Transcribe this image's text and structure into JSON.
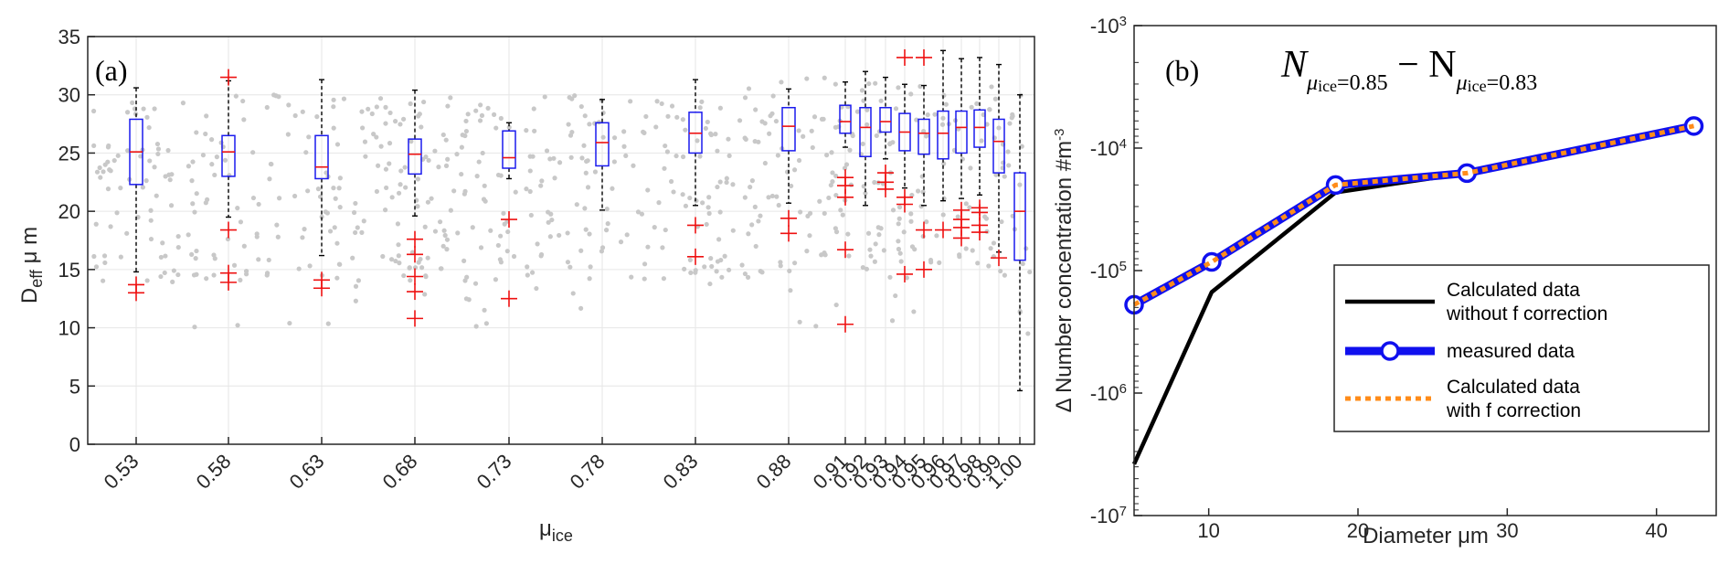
{
  "chart_data": [
    {
      "type": "box",
      "panel_label": "(a)",
      "xlabel_base": "μ",
      "xlabel_sub": "ice",
      "ylabel_base": "D",
      "ylabel_sub": "eff",
      "ylabel_unit": " μ m",
      "ylim": [
        0,
        35
      ],
      "yticks": [
        0,
        5,
        10,
        15,
        20,
        25,
        30,
        35
      ],
      "grid": true,
      "categories": [
        "0.53",
        "0.58",
        "0.63",
        "0.68",
        "0.73",
        "0.78",
        "0.83",
        "0.88",
        "0.91",
        "0.92",
        "0.93",
        "0.94",
        "0.95",
        "0.96",
        "0.97",
        "0.98",
        "0.99",
        "1.00"
      ],
      "boxes": [
        {
          "q1": 22.3,
          "median": 25.1,
          "q3": 27.9,
          "whisker_low": 14.8,
          "whisker_high": 30.6,
          "outliers": [
            13.7,
            13.0
          ]
        },
        {
          "q1": 23.0,
          "median": 25.1,
          "q3": 26.5,
          "whisker_low": 19.5,
          "whisker_high": 31.2,
          "outliers": [
            31.5,
            18.4,
            14.7,
            13.9
          ]
        },
        {
          "q1": 22.8,
          "median": 23.8,
          "q3": 26.5,
          "whisker_low": 16.2,
          "whisker_high": 31.3,
          "outliers": [
            14.1,
            13.4
          ]
        },
        {
          "q1": 23.2,
          "median": 24.9,
          "q3": 26.2,
          "whisker_low": 19.6,
          "whisker_high": 30.4,
          "outliers": [
            17.6,
            16.3,
            14.4,
            13.1,
            10.8
          ]
        },
        {
          "q1": 23.7,
          "median": 24.6,
          "q3": 26.9,
          "whisker_low": 22.8,
          "whisker_high": 27.6,
          "outliers": [
            19.3,
            12.5
          ]
        },
        {
          "q1": 23.9,
          "median": 25.9,
          "q3": 27.6,
          "whisker_low": 20.1,
          "whisker_high": 29.6,
          "outliers": []
        },
        {
          "q1": 25.0,
          "median": 26.7,
          "q3": 28.5,
          "whisker_low": 20.5,
          "whisker_high": 31.3,
          "outliers": [
            18.8,
            16.1
          ]
        },
        {
          "q1": 25.2,
          "median": 27.3,
          "q3": 28.9,
          "whisker_low": 20.7,
          "whisker_high": 30.5,
          "outliers": [
            19.4,
            18.1
          ]
        },
        {
          "q1": 26.7,
          "median": 27.7,
          "q3": 29.1,
          "whisker_low": 25.5,
          "whisker_high": 31.1,
          "outliers": [
            22.9,
            22.2,
            21.2,
            16.7,
            10.3
          ]
        },
        {
          "q1": 24.7,
          "median": 27.2,
          "q3": 28.9,
          "whisker_low": 20.5,
          "whisker_high": 32.0,
          "outliers": []
        },
        {
          "q1": 26.8,
          "median": 27.7,
          "q3": 28.9,
          "whisker_low": 24.5,
          "whisker_high": 31.5,
          "outliers": [
            23.3,
            22.5,
            21.9
          ]
        },
        {
          "q1": 25.2,
          "median": 26.8,
          "q3": 28.4,
          "whisker_low": 22.0,
          "whisker_high": 30.9,
          "outliers": [
            33.2,
            21.2,
            20.6,
            14.6
          ]
        },
        {
          "q1": 24.9,
          "median": 26.7,
          "q3": 27.9,
          "whisker_low": 20.5,
          "whisker_high": 30.8,
          "outliers": [
            33.2,
            18.4,
            15.0
          ]
        },
        {
          "q1": 24.5,
          "median": 26.7,
          "q3": 28.6,
          "whisker_low": 20.9,
          "whisker_high": 33.8,
          "outliers": [
            18.4
          ]
        },
        {
          "q1": 25.0,
          "median": 27.2,
          "q3": 28.6,
          "whisker_low": 21.1,
          "whisker_high": 33.1,
          "outliers": [
            20.1,
            19.3,
            18.6,
            17.7
          ]
        },
        {
          "q1": 25.5,
          "median": 27.2,
          "q3": 28.7,
          "whisker_low": 21.4,
          "whisker_high": 33.2,
          "outliers": [
            20.3,
            19.9,
            18.8,
            18.2
          ]
        },
        {
          "q1": 23.3,
          "median": 26.0,
          "q3": 27.9,
          "whisker_low": 16.5,
          "whisker_high": 32.6,
          "outliers": [
            16.0
          ]
        },
        {
          "q1": 15.8,
          "median": 20.0,
          "q3": 23.3,
          "whisker_low": 4.6,
          "whisker_high": 30.0,
          "outliers": []
        }
      ]
    },
    {
      "type": "line",
      "panel_label": "(b)",
      "title_base": "N",
      "title_sub1": "μ",
      "title_subsub1": "ice",
      "title_eq1": "=0.85",
      "title_minus": " − N",
      "title_sub2": "μ",
      "title_subsub2": "ice",
      "title_eq2": "=0.83",
      "xlabel": "Diameter μm",
      "ylabel": "Δ Number concentration #m",
      "ylabel_sup": "-3",
      "xlim": [
        5,
        44
      ],
      "xticks": [
        10,
        20,
        30,
        40
      ],
      "yscale": "log (negative values)",
      "ylim": [
        -1000,
        -10000000
      ],
      "yticks": [
        {
          "exp": 3,
          "base": "-10",
          "sup": "3"
        },
        {
          "exp": 4,
          "base": "-10",
          "sup": "4"
        },
        {
          "exp": 5,
          "base": "-10",
          "sup": "5"
        },
        {
          "exp": 6,
          "base": "-10",
          "sup": "6"
        },
        {
          "exp": 7,
          "base": "-10",
          "sup": "7"
        }
      ],
      "legend_position": "bottom-right",
      "series": [
        {
          "name_lines": [
            "Calculated data",
            " without f correction"
          ],
          "color": "#000000",
          "style": "solid",
          "x": [
            5,
            10.2,
            18.5,
            27.3,
            42.5
          ],
          "y": [
            -3800000,
            -150000,
            -23000,
            -16000,
            -6600
          ]
        },
        {
          "name_lines": [
            "measured data"
          ],
          "color": "#1010ee",
          "style": "solid-circles",
          "x": [
            5,
            10.2,
            18.5,
            27.3,
            42.5
          ],
          "y": [
            -190000,
            -85000,
            -20000,
            -16000,
            -6600
          ]
        },
        {
          "name_lines": [
            "Calculated data",
            "with f correction"
          ],
          "color": "#ff8c1a",
          "style": "dotted",
          "x": [
            5,
            10.2,
            18.5,
            27.3,
            42.5
          ],
          "y": [
            -190000,
            -85000,
            -20000,
            -16000,
            -6600
          ]
        }
      ]
    }
  ]
}
